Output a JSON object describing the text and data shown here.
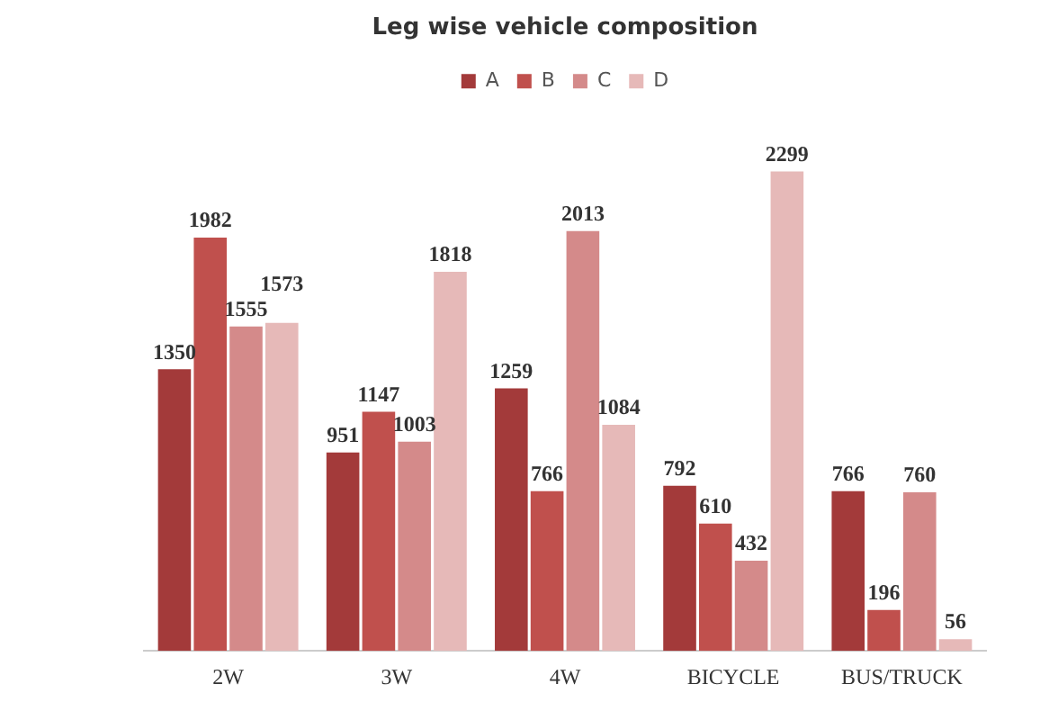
{
  "chart_data": {
    "type": "bar",
    "title": "Leg wise vehicle composition",
    "categories": [
      "2W",
      "3W",
      "4W",
      "BICYCLE",
      "BUS/TRUCK"
    ],
    "series": [
      {
        "name": "A",
        "color": "#a33a3a",
        "values": [
          1350,
          951,
          1259,
          792,
          766
        ]
      },
      {
        "name": "B",
        "color": "#c0504d",
        "values": [
          1982,
          1147,
          766,
          610,
          196
        ]
      },
      {
        "name": "C",
        "color": "#d48a8a",
        "values": [
          1555,
          1003,
          2013,
          432,
          760
        ]
      },
      {
        "name": "D",
        "color": "#e6b9b8",
        "values": [
          1573,
          1818,
          1084,
          2299,
          56
        ]
      }
    ],
    "data_labels": true,
    "grid": false,
    "legend": "top"
  }
}
